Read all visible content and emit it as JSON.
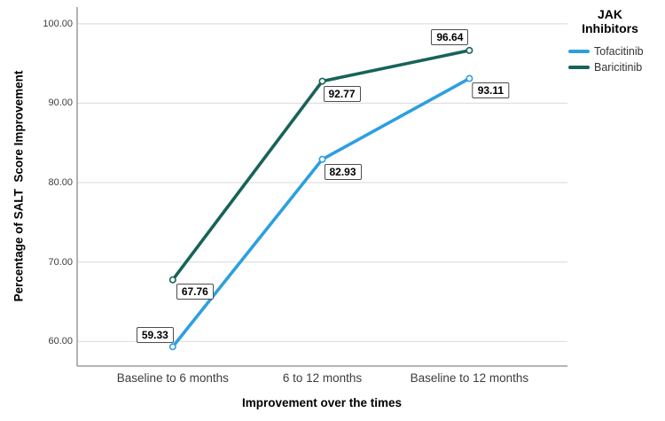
{
  "chart_data": {
    "type": "line",
    "title": "",
    "xlabel": "Improvement over the times",
    "ylabel": "Percentage of SALT  Score Improvement",
    "categories": [
      "Baseline to 6 months",
      "6 to 12 months",
      "Baseline to 12 months"
    ],
    "series": [
      {
        "name": "Tofacitinib",
        "color": "#2d9fe0",
        "values": [
          59.33,
          82.93,
          93.11
        ],
        "label_offsets": [
          [
            -20,
            -13
          ],
          [
            23,
            14
          ],
          [
            24,
            13
          ]
        ]
      },
      {
        "name": "Baricitinib",
        "color": "#17635a",
        "values": [
          67.76,
          92.77,
          96.64
        ],
        "label_offsets": [
          [
            25,
            13
          ],
          [
            22,
            14
          ],
          [
            -22,
            -15
          ]
        ]
      }
    ],
    "y_ticks": [
      100.0,
      90.0,
      80.0,
      70.0,
      60.0
    ],
    "ylim": [
      56.9,
      102.1
    ],
    "cat_fractions": [
      0.195,
      0.5,
      0.8
    ],
    "grid": "on",
    "grid_color": "#d9d9d9",
    "axis_color": "#8a8a8a",
    "label_box_border": "#4d4d4d",
    "marker": "open-circle",
    "legend_position": "top-right",
    "legend_title_lines": [
      "JAK",
      "Inhibitors"
    ],
    "label_format": "fixed2"
  }
}
